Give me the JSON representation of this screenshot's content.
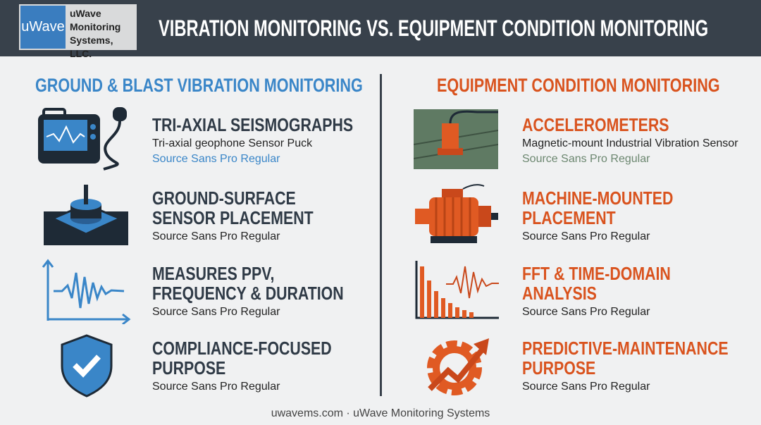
{
  "header": {
    "logo_mark": "uWave",
    "logo_lines": [
      "uWave",
      "Monitoring",
      "Systems, LLC."
    ],
    "title": "VIBRATION MONITORING VS. EQUIPMENT CONDITION MONITORING"
  },
  "left": {
    "heading": "GROUND & BLAST VIBRATION MONITORING",
    "items": [
      {
        "title_lines": [
          "TRI-AXIAL SEISMOGRAPHS"
        ],
        "subtitle": "Tri-axial geophone Sensor Puck",
        "note": "Source Sans Pro Regular"
      },
      {
        "title_lines": [
          "GROUND-SURFACE",
          "SENSOR PLACEMENT"
        ],
        "note": "Source Sans Pro Regular"
      },
      {
        "title_lines": [
          "MEASURES PPV,",
          "FREQUENCY & DURATION"
        ],
        "note": "Source Sans Pro Regular"
      },
      {
        "title_lines": [
          "COMPLIANCE-FOCUSED",
          "PURPOSE"
        ],
        "note": "Source Sans Pro Regular"
      }
    ]
  },
  "right": {
    "heading": "EQUIPMENT CONDITION MONITORING",
    "items": [
      {
        "title_lines": [
          "ACCELEROMETERS"
        ],
        "subtitle": "Magnetic-mount Industrial Vibration Sensor",
        "note": "Source Sans Pro Regular"
      },
      {
        "title_lines": [
          "MACHINE-MOUNTED",
          "PLACEMENT"
        ],
        "note": "Source Sans Pro Regular"
      },
      {
        "title_lines": [
          "FFT & TIME-DOMAIN",
          "ANALYSIS"
        ],
        "note": "Source Sans Pro Regular"
      },
      {
        "title_lines": [
          "PREDICTIVE-MAINTENANCE",
          "PURPOSE"
        ],
        "note": "Source Sans Pro Regular"
      }
    ]
  },
  "footer": "uwavems.com · uWave Monitoring Systems"
}
